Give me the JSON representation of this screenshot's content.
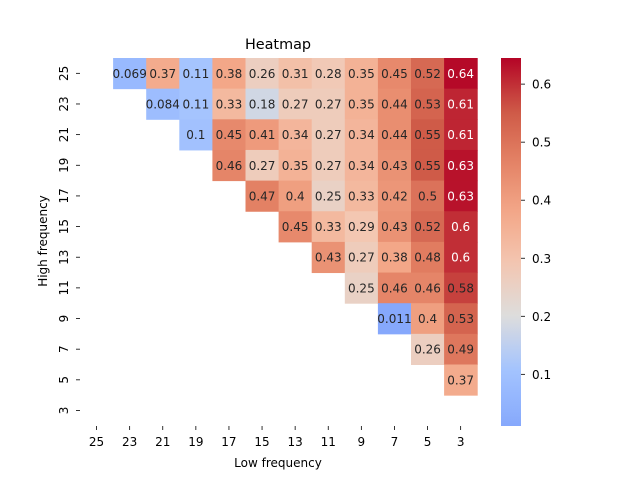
{
  "chart_data": {
    "type": "heatmap",
    "title": "Heatmap",
    "xlabel": "Low frequency",
    "ylabel": "High frequency",
    "x_categories": [
      "25",
      "23",
      "21",
      "19",
      "17",
      "15",
      "13",
      "11",
      "9",
      "7",
      "5",
      "3"
    ],
    "y_categories": [
      "25",
      "23",
      "21",
      "19",
      "17",
      "15",
      "13",
      "11",
      "9",
      "7",
      "5",
      "3"
    ],
    "cells": [
      [
        "",
        "0.069",
        "0.37",
        "0.11",
        "0.38",
        "0.26",
        "0.31",
        "0.28",
        "0.35",
        "0.45",
        "0.52",
        "0.64"
      ],
      [
        "",
        "",
        "0.084",
        "0.11",
        "0.33",
        "0.18",
        "0.27",
        "0.27",
        "0.35",
        "0.44",
        "0.53",
        "0.61"
      ],
      [
        "",
        "",
        "",
        "0.1",
        "0.45",
        "0.41",
        "0.34",
        "0.27",
        "0.34",
        "0.44",
        "0.55",
        "0.61"
      ],
      [
        "",
        "",
        "",
        "",
        "0.46",
        "0.27",
        "0.35",
        "0.27",
        "0.34",
        "0.43",
        "0.55",
        "0.63"
      ],
      [
        "",
        "",
        "",
        "",
        "",
        "0.47",
        "0.4",
        "0.25",
        "0.33",
        "0.42",
        "0.5",
        "0.63"
      ],
      [
        "",
        "",
        "",
        "",
        "",
        "",
        "0.45",
        "0.33",
        "0.29",
        "0.43",
        "0.52",
        "0.6"
      ],
      [
        "",
        "",
        "",
        "",
        "",
        "",
        "",
        "0.43",
        "0.27",
        "0.38",
        "0.48",
        "0.6"
      ],
      [
        "",
        "",
        "",
        "",
        "",
        "",
        "",
        "",
        "0.25",
        "0.46",
        "0.46",
        "0.58"
      ],
      [
        "",
        "",
        "",
        "",
        "",
        "",
        "",
        "",
        "",
        "0.011",
        "0.4",
        "0.53"
      ],
      [
        "",
        "",
        "",
        "",
        "",
        "",
        "",
        "",
        "",
        "",
        "0.26",
        "0.49"
      ],
      [
        "",
        "",
        "",
        "",
        "",
        "",
        "",
        "",
        "",
        "",
        "",
        "0.37"
      ],
      [
        "",
        "",
        "",
        "",
        "",
        "",
        "",
        "",
        "",
        "",
        "",
        ""
      ]
    ],
    "colorbar": {
      "colormap": "coolwarm",
      "range": [
        0.011,
        0.645
      ],
      "ticks": [
        "0.1",
        "0.2",
        "0.3",
        "0.4",
        "0.5",
        "0.6"
      ]
    },
    "grid": false
  }
}
